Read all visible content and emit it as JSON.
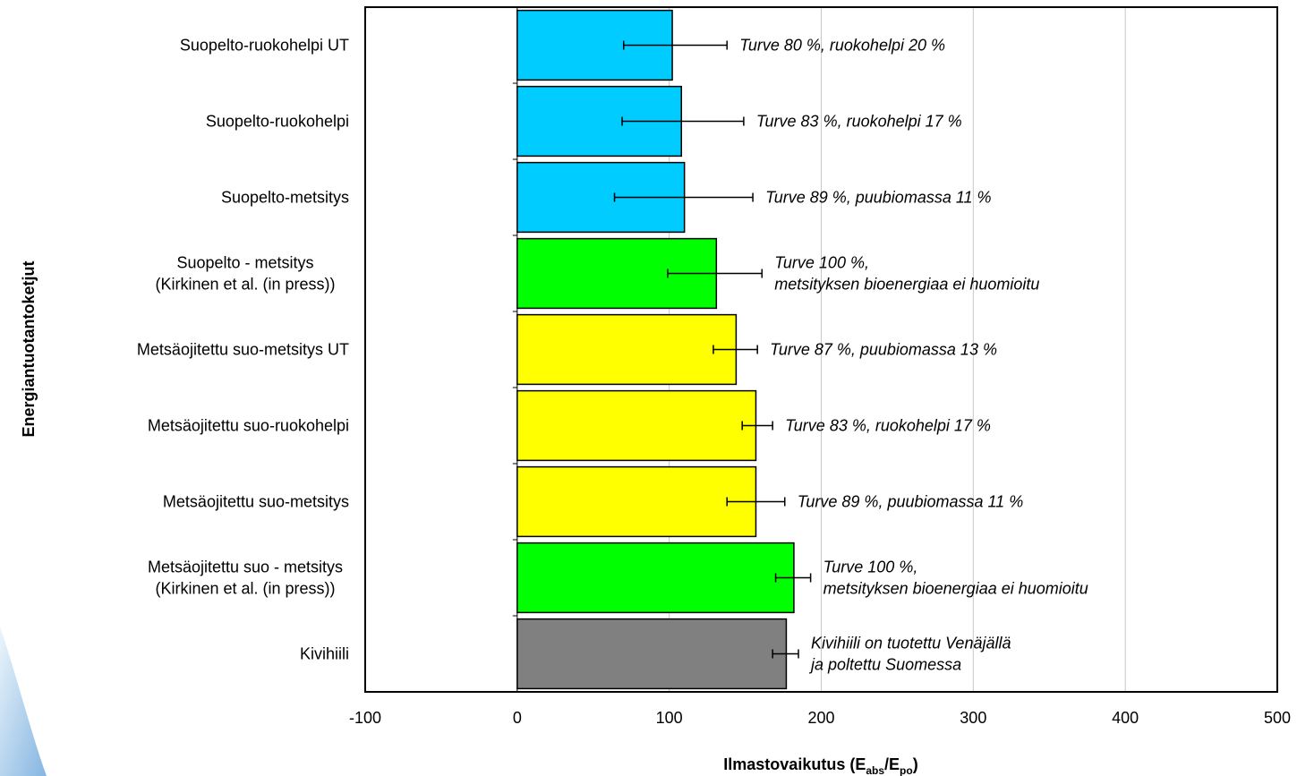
{
  "chart_data": {
    "type": "bar",
    "orientation": "horizontal",
    "title": "",
    "xlabel": "Ilmastovaikutus (E",
    "xlabel_sub1": "abs",
    "xlabel_slash": "/E",
    "xlabel_sub2": "po",
    "xlabel_close": ")",
    "ylabel": "Energiantuotantoketjut",
    "xlim": [
      -100,
      500
    ],
    "xticks": [
      -100,
      0,
      100,
      200,
      300,
      400,
      500
    ],
    "grid": "vertical",
    "legend": "none",
    "categories": [
      {
        "label": [
          "Suopelto-ruokohelpi UT"
        ],
        "value": 102,
        "err_low": 70,
        "err_high": 138,
        "color": "#00ccff",
        "annotation": [
          "Turve 80 %, ruokohelpi 20 %"
        ]
      },
      {
        "label": [
          "Suopelto-ruokohelpi"
        ],
        "value": 108,
        "err_low": 69,
        "err_high": 149,
        "color": "#00ccff",
        "annotation": [
          "Turve 83 %, ruokohelpi 17 %"
        ]
      },
      {
        "label": [
          "Suopelto-metsitys"
        ],
        "value": 110,
        "err_low": 64,
        "err_high": 155,
        "color": "#00ccff",
        "annotation": [
          "Turve 89 %, puubiomassa 11 %"
        ]
      },
      {
        "label": [
          "Suopelto - metsitys",
          "(Kirkinen et al. (in press))"
        ],
        "value": 131,
        "err_low": 99,
        "err_high": 161,
        "color": "#00ff00",
        "annotation": [
          "Turve 100 %,",
          "metsityksen  bioenergiaa ei huomioitu"
        ]
      },
      {
        "label": [
          "Metsäojitettu suo-metsitys UT"
        ],
        "value": 144,
        "err_low": 129,
        "err_high": 158,
        "color": "#ffff00",
        "annotation": [
          "Turve 87 %, puubiomassa 13 %"
        ]
      },
      {
        "label": [
          "Metsäojitettu suo-ruokohelpi"
        ],
        "value": 157,
        "err_low": 148,
        "err_high": 168,
        "color": "#ffff00",
        "annotation": [
          "Turve 83 %, ruokohelpi 17 %"
        ]
      },
      {
        "label": [
          "Metsäojitettu suo-metsitys"
        ],
        "value": 157,
        "err_low": 138,
        "err_high": 176,
        "color": "#ffff00",
        "annotation": [
          "Turve 89 %, puubiomassa 11 %"
        ]
      },
      {
        "label": [
          "Metsäojitettu suo - metsitys",
          "(Kirkinen et al. (in press))"
        ],
        "value": 182,
        "err_low": 170,
        "err_high": 193,
        "color": "#00ff00",
        "annotation": [
          "Turve 100 %,",
          "metsityksen bioenergiaa ei huomioitu"
        ]
      },
      {
        "label": [
          "Kivihiili"
        ],
        "value": 177,
        "err_low": 168,
        "err_high": 185,
        "color": "#808080",
        "annotation": [
          "Kivihiili on tuotettu Venäjällä",
          "ja poltettu Suomessa"
        ]
      }
    ]
  }
}
